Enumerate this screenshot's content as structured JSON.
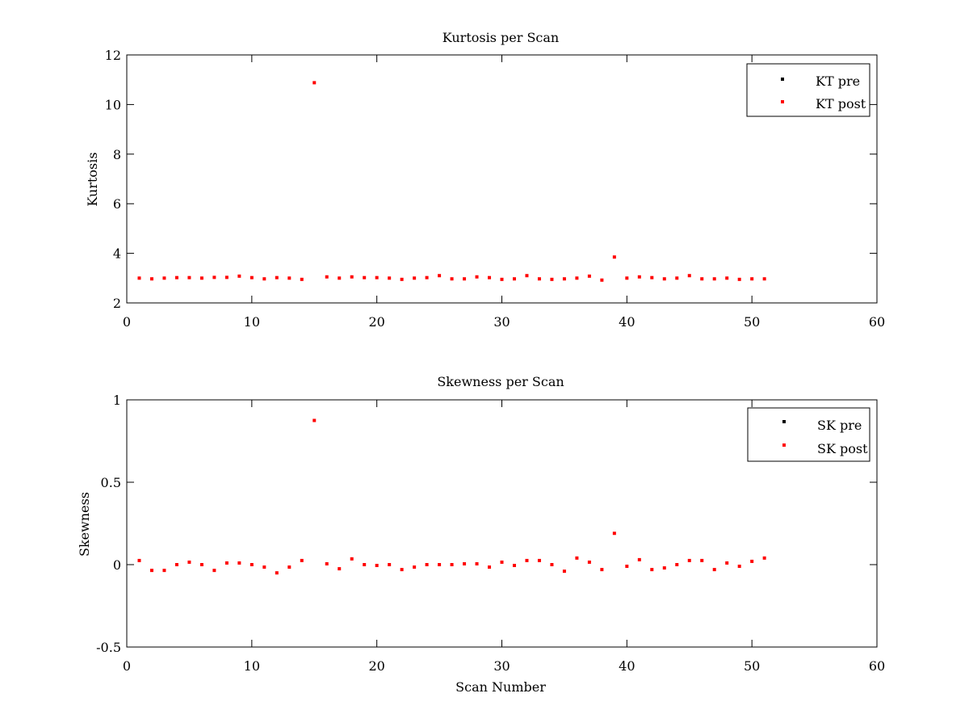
{
  "chart_data": [
    {
      "type": "scatter",
      "title": "Kurtosis per Scan",
      "xlabel": "",
      "ylabel": "Kurtosis",
      "xlim": [
        0,
        60
      ],
      "ylim": [
        2,
        12
      ],
      "xticks": [
        "0",
        "10",
        "20",
        "30",
        "40",
        "50",
        "60"
      ],
      "yticks": [
        "2",
        "4",
        "6",
        "8",
        "10",
        "12"
      ],
      "xtick_values": [
        0,
        10,
        20,
        30,
        40,
        50,
        60
      ],
      "ytick_values": [
        2,
        4,
        6,
        8,
        10,
        12
      ],
      "grid": false,
      "legend_position": "top-right",
      "series": [
        {
          "name": "KT pre",
          "color": "#000000",
          "x": [],
          "y": []
        },
        {
          "name": "KT post",
          "color": "#ff0000",
          "x": [
            1,
            2,
            3,
            4,
            5,
            6,
            7,
            8,
            9,
            10,
            11,
            12,
            13,
            14,
            15,
            16,
            17,
            18,
            19,
            20,
            21,
            22,
            23,
            24,
            25,
            26,
            27,
            28,
            29,
            30,
            31,
            32,
            33,
            34,
            35,
            36,
            37,
            38,
            39,
            40,
            41,
            42,
            43,
            44,
            45,
            46,
            47,
            48,
            49,
            50,
            51
          ],
          "y": [
            3.0,
            2.97,
            3.0,
            3.02,
            3.02,
            3.0,
            3.03,
            3.03,
            3.08,
            3.02,
            2.97,
            3.02,
            3.0,
            2.95,
            10.88,
            3.05,
            3.0,
            3.05,
            3.02,
            3.02,
            3.0,
            2.95,
            3.0,
            3.02,
            3.1,
            2.97,
            2.97,
            3.05,
            3.02,
            2.95,
            2.97,
            3.1,
            2.97,
            2.95,
            2.97,
            3.0,
            3.08,
            2.92,
            3.85,
            3.0,
            3.05,
            3.02,
            2.97,
            3.0,
            3.1,
            2.97,
            2.97,
            3.0,
            2.95,
            2.97,
            2.97
          ]
        }
      ]
    },
    {
      "type": "scatter",
      "title": "Skewness per Scan",
      "xlabel": "Scan Number",
      "ylabel": "Skewness",
      "xlim": [
        0,
        60
      ],
      "ylim": [
        -0.5,
        1
      ],
      "xticks": [
        "0",
        "10",
        "20",
        "30",
        "40",
        "50",
        "60"
      ],
      "yticks": [
        "-0.5",
        "0",
        "0.5",
        "1"
      ],
      "xtick_values": [
        0,
        10,
        20,
        30,
        40,
        50,
        60
      ],
      "ytick_values": [
        -0.5,
        0,
        0.5,
        1
      ],
      "grid": false,
      "legend_position": "top-right",
      "series": [
        {
          "name": "SK pre",
          "color": "#000000",
          "x": [],
          "y": []
        },
        {
          "name": "SK post",
          "color": "#ff0000",
          "x": [
            1,
            2,
            3,
            4,
            5,
            6,
            7,
            8,
            9,
            10,
            11,
            12,
            13,
            14,
            15,
            16,
            17,
            18,
            19,
            20,
            21,
            22,
            23,
            24,
            25,
            26,
            27,
            28,
            29,
            30,
            31,
            32,
            33,
            34,
            35,
            36,
            37,
            38,
            39,
            40,
            41,
            42,
            43,
            44,
            45,
            46,
            47,
            48,
            49,
            50,
            51
          ],
          "y": [
            0.025,
            -0.035,
            -0.035,
            0.0,
            0.015,
            0.0,
            -0.035,
            0.01,
            0.01,
            0.0,
            -0.015,
            -0.05,
            -0.015,
            0.025,
            0.875,
            0.005,
            -0.025,
            0.035,
            0.0,
            -0.005,
            0.0,
            -0.03,
            -0.015,
            0.0,
            0.0,
            0.0,
            0.005,
            0.005,
            -0.015,
            0.015,
            -0.005,
            0.025,
            0.025,
            0.0,
            -0.04,
            0.04,
            0.015,
            -0.03,
            0.19,
            -0.01,
            0.03,
            -0.03,
            -0.02,
            0.0,
            0.025,
            0.025,
            -0.03,
            0.01,
            -0.01,
            0.02,
            0.04
          ]
        }
      ]
    }
  ]
}
